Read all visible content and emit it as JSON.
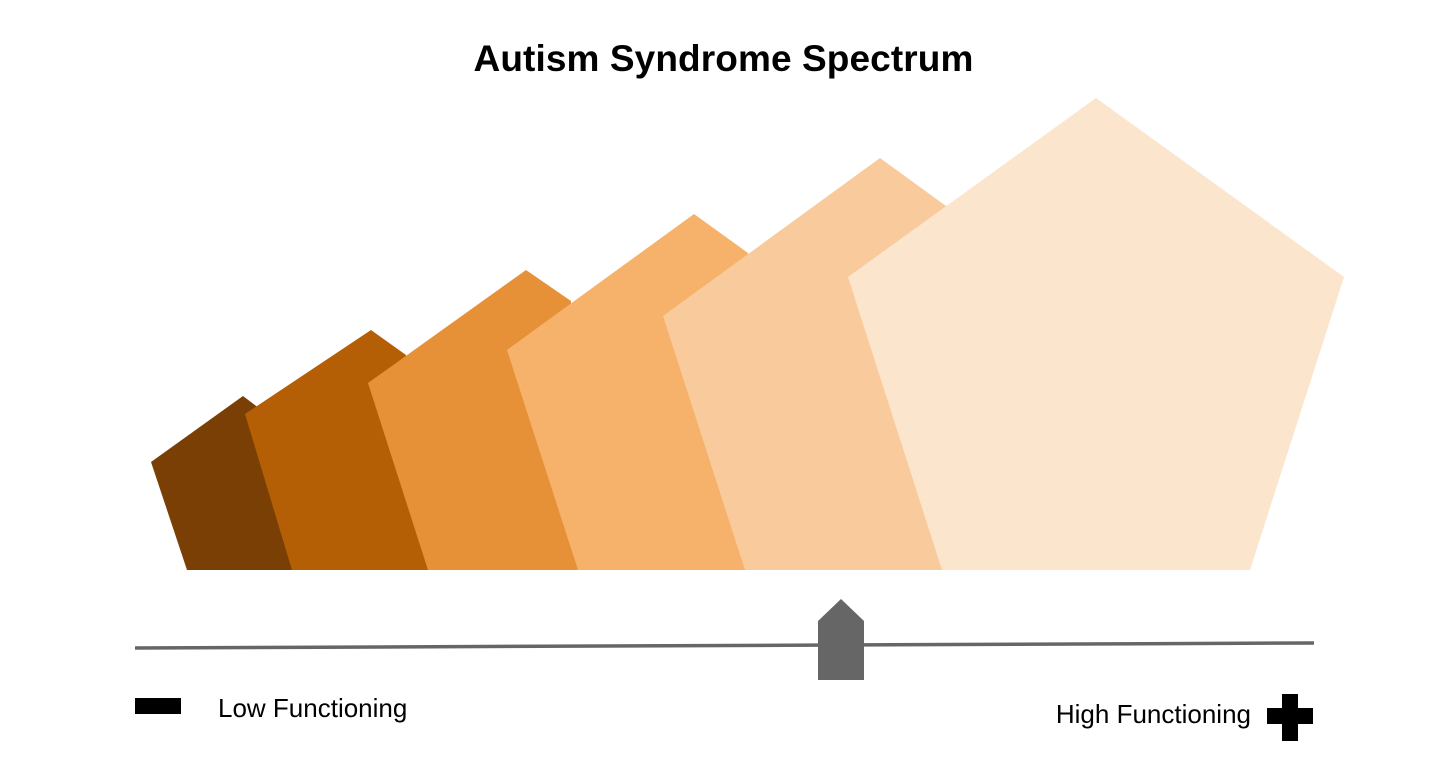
{
  "title": "Autism Syndrome Spectrum",
  "scale": {
    "low_label": "Low Functioning",
    "high_label": "High Functioning",
    "low_icon": "minus-icon",
    "high_icon": "plus-icon",
    "marker_icon": "pointer-marker-icon",
    "line_color": "#666666",
    "marker_color": "#666666"
  },
  "pentagons": [
    {
      "name": "pentagon-1",
      "color": "#7a3f04"
    },
    {
      "name": "pentagon-2",
      "color": "#b45f06"
    },
    {
      "name": "pentagon-3",
      "color": "#e69138"
    },
    {
      "name": "pentagon-4",
      "color": "#f6b26b"
    },
    {
      "name": "pentagon-5",
      "color": "#f9cb9c"
    },
    {
      "name": "pentagon-6",
      "color": "#fce5cd"
    }
  ]
}
